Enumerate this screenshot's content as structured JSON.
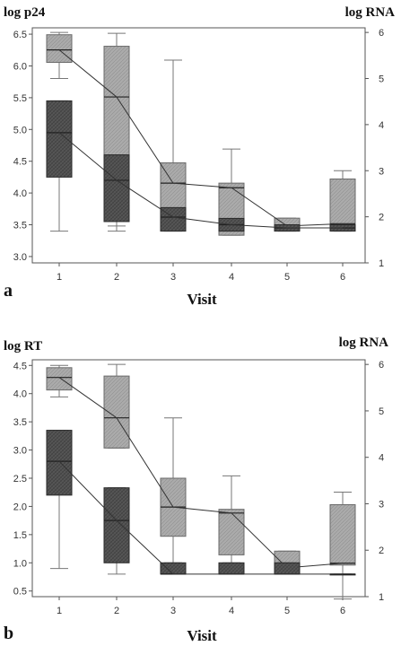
{
  "colors": {
    "light_box": "#ababab",
    "dark_box": "#565656",
    "frame": "#555555",
    "line": "#333333"
  },
  "chart_data": [
    {
      "type": "boxplot",
      "panel_label": "a",
      "left_axis_title": "log p24",
      "right_axis_title": "log RNA",
      "xlabel": "Visit",
      "categories": [
        "1",
        "2",
        "3",
        "4",
        "5",
        "6"
      ],
      "left_ylim": [
        2.9,
        6.6
      ],
      "left_ticks": [
        "6.5",
        "6.0",
        "5.5",
        "5.0",
        "4.5",
        "4.0",
        "3.5",
        "3.0"
      ],
      "right_ylim": [
        1,
        6.1
      ],
      "right_ticks": [
        "6",
        "5",
        "4",
        "3",
        "2",
        "1"
      ],
      "grid": false,
      "series": [
        {
          "axis": "right",
          "style": "light",
          "boxes": [
            {
              "min": 5.0,
              "q1": 5.35,
              "median": 5.62,
              "q3": 5.95,
              "max": 6.0
            },
            {
              "min": 1.8,
              "q1": 2.05,
              "median": 4.6,
              "q3": 5.7,
              "max": 5.98
            },
            {
              "min": 1.8,
              "q1": 2.0,
              "median": 2.73,
              "q3": 3.17,
              "max": 5.4
            },
            {
              "min": 1.6,
              "q1": 1.6,
              "median": 2.63,
              "q3": 2.73,
              "max": 3.47
            },
            {
              "min": 1.7,
              "q1": 1.7,
              "median": 1.8,
              "q3": 1.97,
              "max": 1.97
            },
            {
              "min": 1.7,
              "q1": 1.7,
              "median": 1.85,
              "q3": 2.82,
              "max": 3.0
            }
          ]
        },
        {
          "axis": "left",
          "style": "dark",
          "boxes": [
            {
              "min": 3.4,
              "q1": 4.25,
              "median": 4.95,
              "q3": 5.45,
              "max": 5.45
            },
            {
              "min": 3.4,
              "q1": 3.55,
              "median": 4.2,
              "q3": 4.6,
              "max": 4.6
            },
            {
              "min": 3.4,
              "q1": 3.4,
              "median": 3.62,
              "q3": 3.77,
              "max": 3.77
            },
            {
              "min": 3.4,
              "q1": 3.4,
              "median": 3.5,
              "q3": 3.6,
              "max": 3.6
            },
            {
              "min": 3.4,
              "q1": 3.4,
              "median": 3.45,
              "q3": 3.5,
              "max": 3.5
            },
            {
              "min": 3.4,
              "q1": 3.4,
              "median": 3.45,
              "q3": 3.5,
              "max": 3.5
            }
          ]
        }
      ]
    },
    {
      "type": "boxplot",
      "panel_label": "b",
      "left_axis_title": "log RT",
      "right_axis_title": "log RNA",
      "xlabel": "Visit",
      "categories": [
        "1",
        "2",
        "3",
        "4",
        "5",
        "6"
      ],
      "left_ylim": [
        0.4,
        4.6
      ],
      "left_ticks": [
        "4.5",
        "4.0",
        "3.5",
        "3.0",
        "2.5",
        "2.0",
        "1.5",
        "1.0",
        "0.5"
      ],
      "right_ylim": [
        1,
        6.1
      ],
      "right_ticks": [
        "6",
        "5",
        "4",
        "3",
        "2",
        "1"
      ],
      "grid": false,
      "series": [
        {
          "axis": "right",
          "style": "light",
          "boxes": [
            {
              "min": 5.3,
              "q1": 5.45,
              "median": 5.72,
              "q3": 5.93,
              "max": 5.98
            },
            {
              "min": 4.2,
              "q1": 4.2,
              "median": 4.85,
              "q3": 5.75,
              "max": 6.0
            },
            {
              "min": 1.7,
              "q1": 2.3,
              "median": 2.93,
              "q3": 3.55,
              "max": 4.85
            },
            {
              "min": 1.7,
              "q1": 1.9,
              "median": 2.8,
              "q3": 2.88,
              "max": 3.6
            },
            {
              "min": 1.6,
              "q1": 1.6,
              "median": 1.62,
              "q3": 1.98,
              "max": 1.98
            },
            {
              "min": 0.95,
              "q1": 1.68,
              "median": 1.72,
              "q3": 2.98,
              "max": 3.25
            }
          ]
        },
        {
          "axis": "left",
          "style": "dark",
          "boxes": [
            {
              "min": 0.9,
              "q1": 2.2,
              "median": 2.8,
              "q3": 3.35,
              "max": 3.35
            },
            {
              "min": 0.8,
              "q1": 1.0,
              "median": 1.75,
              "q3": 2.33,
              "max": 2.33
            },
            {
              "min": 0.8,
              "q1": 0.8,
              "median": 0.8,
              "q3": 1.0,
              "max": 1.0
            },
            {
              "min": 0.8,
              "q1": 0.8,
              "median": 0.8,
              "q3": 1.0,
              "max": 1.0
            },
            {
              "min": 0.8,
              "q1": 0.8,
              "median": 0.8,
              "q3": 1.0,
              "max": 1.0
            },
            {
              "min": 0.8,
              "q1": 0.8,
              "median": 0.8,
              "q3": 0.8,
              "max": 0.8
            }
          ]
        }
      ]
    }
  ]
}
